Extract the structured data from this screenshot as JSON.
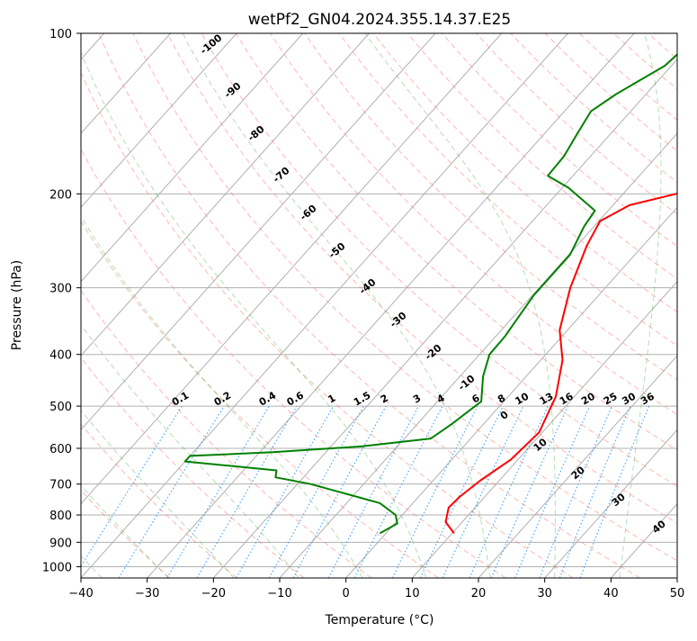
{
  "chart_data": {
    "type": "line",
    "subtype": "skew-t log-p diagram",
    "title": "wetPf2_GN04.2024.355.14.37.E25",
    "xlabel": "Temperature (°C)",
    "ylabel": "Pressure (hPa)",
    "xlim": [
      -40,
      50
    ],
    "ylim": [
      1050,
      100
    ],
    "y_scale": "log",
    "x_ticks": [
      -40,
      -30,
      -20,
      -10,
      0,
      10,
      20,
      30,
      40,
      50
    ],
    "y_ticks": [
      100,
      200,
      300,
      400,
      500,
      600,
      700,
      800,
      900,
      1000
    ],
    "grid": true,
    "series": [
      {
        "role": "temperature",
        "color": "#ff0000",
        "points": [
          {
            "p": 866,
            "t": 10.3
          },
          {
            "p": 825,
            "t": 7.5
          },
          {
            "p": 775,
            "t": 6.0
          },
          {
            "p": 740,
            "t": 6.2
          },
          {
            "p": 690,
            "t": 7.1
          },
          {
            "p": 630,
            "t": 8.9
          },
          {
            "p": 560,
            "t": 9.5
          },
          {
            "p": 480,
            "t": 7.2
          },
          {
            "p": 410,
            "t": 3.3
          },
          {
            "p": 360,
            "t": -1.2
          },
          {
            "p": 300,
            "t": -5.3
          },
          {
            "p": 250,
            "t": -8.5
          },
          {
            "p": 225,
            "t": -9.8
          },
          {
            "p": 210,
            "t": -7.5
          },
          {
            "p": 200,
            "t": -2.0
          },
          {
            "p": 185,
            "t": 1.5
          },
          {
            "p": 165,
            "t": 3.8
          },
          {
            "p": 145,
            "t": 6.3
          },
          {
            "p": 130,
            "t": 10.5
          },
          {
            "p": 120,
            "t": 9.5
          },
          {
            "p": 110,
            "t": 12.5
          },
          {
            "p": 100,
            "t": 17.0
          }
        ]
      },
      {
        "role": "dewpoint",
        "color": "#008000",
        "points": [
          {
            "p": 866,
            "t": -0.9
          },
          {
            "p": 830,
            "t": 0.4
          },
          {
            "p": 800,
            "t": -1.0
          },
          {
            "p": 760,
            "t": -5.0
          },
          {
            "p": 700,
            "t": -18.0
          },
          {
            "p": 680,
            "t": -24.2
          },
          {
            "p": 660,
            "t": -25.0
          },
          {
            "p": 635,
            "t": -40.0
          },
          {
            "p": 620,
            "t": -40.0
          },
          {
            "p": 610,
            "t": -28.0
          },
          {
            "p": 595,
            "t": -15.5
          },
          {
            "p": 575,
            "t": -6.0
          },
          {
            "p": 540,
            "t": -4.8
          },
          {
            "p": 490,
            "t": -3.4
          },
          {
            "p": 440,
            "t": -6.5
          },
          {
            "p": 400,
            "t": -8.5
          },
          {
            "p": 370,
            "t": -8.6
          },
          {
            "p": 310,
            "t": -9.8
          },
          {
            "p": 260,
            "t": -9.8
          },
          {
            "p": 230,
            "t": -11.5
          },
          {
            "p": 215,
            "t": -12.0
          },
          {
            "p": 195,
            "t": -19.0
          },
          {
            "p": 185,
            "t": -23.8
          },
          {
            "p": 170,
            "t": -24.0
          },
          {
            "p": 155,
            "t": -25.0
          },
          {
            "p": 140,
            "t": -26.0
          },
          {
            "p": 130,
            "t": -24.5
          },
          {
            "p": 115,
            "t": -21.0
          },
          {
            "p": 100,
            "t": -20.0
          }
        ]
      }
    ],
    "dry_adiabats": {
      "color": "#fa8072",
      "labels": []
    },
    "moist_adiabats": {
      "color": "#1f77b4",
      "labels": [
        "-100",
        "-90",
        "-80",
        "-70",
        "-60",
        "-50",
        "-40",
        "-30",
        "-20",
        "-10",
        "0",
        "10",
        "20",
        "30",
        "40"
      ]
    },
    "mixing_ratio_lines": {
      "color": "#1e90ff",
      "labels": [
        "0.1",
        "0.2",
        "0.4",
        "0.6",
        "1",
        "1.5",
        "2",
        "3",
        "4",
        "6",
        "8",
        "10",
        "13",
        "16",
        "20",
        "25",
        "30",
        "36"
      ]
    }
  }
}
